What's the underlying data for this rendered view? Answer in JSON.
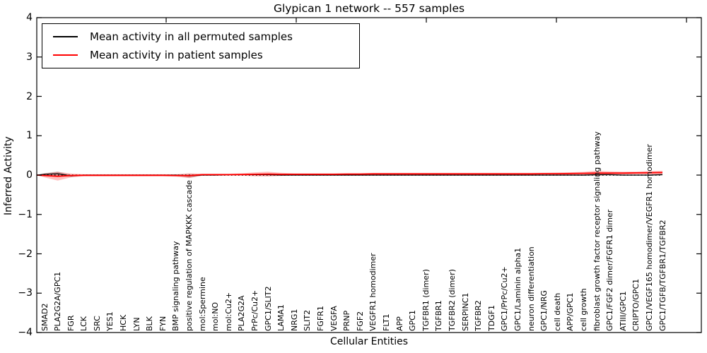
{
  "chart_data": {
    "type": "line",
    "title": "Glypican 1 network -- 557 samples",
    "xlabel": "Cellular Entities",
    "ylabel": "Inferred Activity",
    "ylim": [
      -4,
      4
    ],
    "yticks": [
      "4",
      "3",
      "2",
      "1",
      "0",
      "−1",
      "−2",
      "−3",
      "−4"
    ],
    "grid": false,
    "zero_line_style": "dotted",
    "legend_position": "upper left",
    "categories": [
      "SMAD2",
      "PLA2G2A/GPC1",
      "FGR",
      "LCK",
      "SRC",
      "YES1",
      "HCK",
      "LYN",
      "BLK",
      "FYN",
      "BMP signaling pathway",
      "positive regulation of MAPKKK cascade",
      "mol:Spermine",
      "mol:NO",
      "mol:Cu2+",
      "PLA2G2A",
      "PrPc/Cu2+",
      "GPC1/SLIT2",
      "LAMA1",
      "NRG1",
      "SLIT2",
      "FGFR1",
      "VEGFA",
      "PRNP",
      "FGF2",
      "VEGFR1 homodimer",
      "FLT1",
      "APP",
      "GPC1",
      "TGFBR1 (dimer)",
      "TGFBR1",
      "TGFBR2 (dimer)",
      "SERPINC1",
      "TGFBR2",
      "TDGF1",
      "GPC1/PrPc/Cu2+",
      "GPC1/Laminin alpha1",
      "neuron differentiation",
      "GPC1/NRG",
      "cell death",
      "APP/GPC1",
      "cell growth",
      "fibroblast growth factor receptor signaling pathway",
      "GPC1/FGF2 dimer/FGFR1 dimer",
      "ATIII/GPC1",
      "CRIPTO/GPC1",
      "GPC1/VEGF165 homodimer/VEGFR1 homodimer",
      "GPC1/TGFB/TGFBR1/TGFBR2"
    ],
    "series": [
      {
        "name": "Mean activity in all permuted samples",
        "color": "#000000",
        "band_opacity": 0.18,
        "values": [
          0.02,
          0.035,
          -0.02,
          0,
          0,
          0,
          0,
          0,
          0,
          0,
          0,
          -0.02,
          0,
          0,
          0.01,
          0.01,
          0.01,
          0.01,
          0,
          0,
          0,
          0,
          0,
          0,
          0,
          0,
          0,
          0,
          0,
          0,
          0,
          0,
          0,
          0,
          0,
          0,
          0,
          0,
          0,
          0,
          0,
          0,
          0.01,
          0.01,
          0,
          0,
          0,
          0.01
        ],
        "band": [
          0.03,
          0.055,
          0.03,
          0.015,
          0.012,
          0.012,
          0.012,
          0.012,
          0.012,
          0.012,
          0.015,
          0.05,
          0.012,
          0.012,
          0.015,
          0.015,
          0.02,
          0.02,
          0.015,
          0.012,
          0.012,
          0.012,
          0.012,
          0.012,
          0.012,
          0.012,
          0.012,
          0.012,
          0.012,
          0.012,
          0.012,
          0.012,
          0.012,
          0.012,
          0.012,
          0.012,
          0.012,
          0.012,
          0.015,
          0.015,
          0.015,
          0.02,
          0.03,
          0.02,
          0.015,
          0.015,
          0.015,
          0.02
        ]
      },
      {
        "name": "Mean activity in patient samples",
        "color": "#ff0000",
        "band_opacity": 0.25,
        "values": [
          -0.01,
          -0.03,
          -0.01,
          -0.005,
          -0.005,
          -0.005,
          -0.005,
          -0.005,
          -0.005,
          -0.005,
          -0.01,
          -0.015,
          0.01,
          0.01,
          0.01,
          0.015,
          0.02,
          0.025,
          0.02,
          0.02,
          0.02,
          0.02,
          0.02,
          0.025,
          0.025,
          0.03,
          0.03,
          0.03,
          0.03,
          0.03,
          0.03,
          0.03,
          0.03,
          0.03,
          0.03,
          0.03,
          0.03,
          0.03,
          0.035,
          0.035,
          0.04,
          0.045,
          0.05,
          0.05,
          0.05,
          0.055,
          0.06,
          0.065
        ],
        "band": [
          0.05,
          0.11,
          0.05,
          0.025,
          0.025,
          0.025,
          0.025,
          0.025,
          0.025,
          0.025,
          0.03,
          0.06,
          0.025,
          0.025,
          0.025,
          0.03,
          0.05,
          0.06,
          0.04,
          0.025,
          0.025,
          0.025,
          0.025,
          0.025,
          0.025,
          0.025,
          0.025,
          0.025,
          0.025,
          0.025,
          0.025,
          0.025,
          0.025,
          0.025,
          0.025,
          0.025,
          0.025,
          0.025,
          0.025,
          0.03,
          0.03,
          0.035,
          0.06,
          0.045,
          0.035,
          0.035,
          0.04,
          0.045
        ]
      }
    ]
  }
}
